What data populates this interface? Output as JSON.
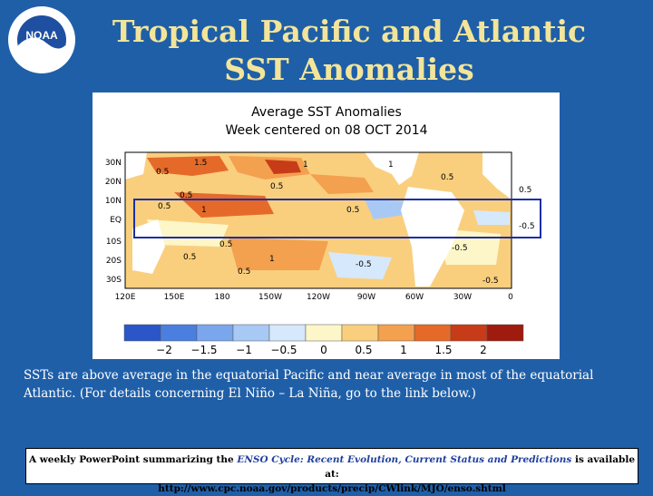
{
  "slide": {
    "title_line1": "Tropical Pacific and Atlantic",
    "title_line2": "SST Anomalies",
    "caption": "SSTs are above average in the equatorial Pacific and near average in most of the equatorial Atlantic.  (For details concerning El Niño – La Niña, go to the link below.)",
    "footer_prefix": "A weekly PowerPoint summarizing the ",
    "footer_emph": "ENSO Cycle: Recent Evolution, Current Status and Predictions",
    "footer_suffix": " is available at:",
    "footer_url": "http://www.cpc.noaa.gov/products/precip/CWlink/MJO/enso.shtml"
  },
  "logo": {
    "text": "NOAA"
  },
  "map": {
    "title_line1": "Average SST Anomalies",
    "title_line2": "Week centered on 08 OCT 2014",
    "lat_labels": [
      "30N",
      "20N",
      "10N",
      "EQ",
      "10S",
      "20S",
      "30S"
    ],
    "lon_labels": [
      "120E",
      "150E",
      "180",
      "150W",
      "120W",
      "90W",
      "60W",
      "30W",
      "0"
    ],
    "contour_labels": [
      "1.5",
      "0.5",
      "1",
      "0.5",
      "0.5",
      "1",
      "0.5",
      "1",
      "0.5",
      "0.5",
      "0.5",
      "1",
      "-0.5",
      "0.5",
      "0.5",
      "-0.5",
      "-0.5",
      "0.5",
      "-0.5"
    ],
    "colorbar_labels": [
      "−2",
      "−1.5",
      "−1",
      "−0.5",
      "0",
      "0.5",
      "1",
      "1.5",
      "2"
    ],
    "colorbar_colors": [
      "#2a56c8",
      "#4a7fe0",
      "#7aa6ee",
      "#a9c9f5",
      "#d6e8fb",
      "#fdf6c8",
      "#f9cf7e",
      "#f3a04f",
      "#e56a2a",
      "#c83b18",
      "#9e1b0e"
    ],
    "land_color": "#ffffff",
    "box_color": "#1b2fa8"
  }
}
